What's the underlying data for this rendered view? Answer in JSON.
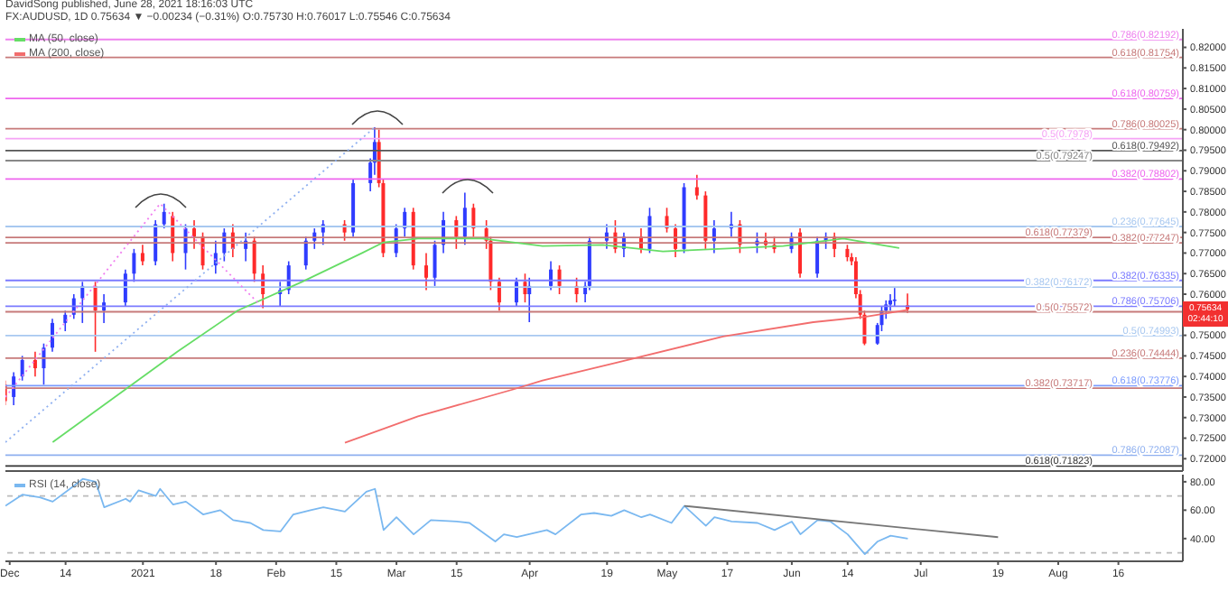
{
  "chart_data": [
    {
      "type": "candlestick",
      "subtitle": "DavidSong published, June 28, 2021 18:16:03 UTC",
      "title": "FX:AUDUSD, 1D 0.75634 ▼ −0.00234 (−0.31%) O:0.75730 H:0.76017 L:0.75546 C:0.75634",
      "x": [
        "2020-11-30",
        "2020-12-02",
        "2020-12-04",
        "2020-12-07",
        "2020-12-09",
        "2020-12-11",
        "2020-12-14",
        "2020-12-16",
        "2020-12-18",
        "2020-12-21",
        "2020-12-23",
        "2020-12-28",
        "2020-12-30",
        "2021-01-01",
        "2021-01-04",
        "2021-01-06",
        "2021-01-08",
        "2021-01-11",
        "2021-01-13",
        "2021-01-15",
        "2021-01-18",
        "2021-01-20",
        "2021-01-22",
        "2021-01-25",
        "2021-01-27",
        "2021-01-29",
        "2021-02-02",
        "2021-02-04",
        "2021-02-08",
        "2021-02-10",
        "2021-02-12",
        "2021-02-17",
        "2021-02-19",
        "2021-02-23",
        "2021-02-24",
        "2021-02-25",
        "2021-02-26",
        "2021-03-01",
        "2021-03-03",
        "2021-03-05",
        "2021-03-08",
        "2021-03-10",
        "2021-03-12",
        "2021-03-15",
        "2021-03-17",
        "2021-03-19",
        "2021-03-22",
        "2021-03-23",
        "2021-03-25",
        "2021-03-29",
        "2021-03-31",
        "2021-04-01",
        "2021-04-06",
        "2021-04-08",
        "2021-04-12",
        "2021-04-14",
        "2021-04-15",
        "2021-04-19",
        "2021-04-21",
        "2021-04-23",
        "2021-04-27",
        "2021-04-29",
        "2021-05-03",
        "2021-05-05",
        "2021-05-07",
        "2021-05-10",
        "2021-05-12",
        "2021-05-14",
        "2021-05-18",
        "2021-05-20",
        "2021-05-24",
        "2021-05-26",
        "2021-05-28",
        "2021-06-01",
        "2021-06-03",
        "2021-06-07",
        "2021-06-09",
        "2021-06-11",
        "2021-06-14",
        "2021-06-15",
        "2021-06-16",
        "2021-06-17",
        "2021-06-18",
        "2021-06-21",
        "2021-06-22",
        "2021-06-23",
        "2021-06-24",
        "2021-06-25",
        "2021-06-28"
      ],
      "ohlc": [
        [
          0.738,
          0.739,
          0.733,
          0.734
        ],
        [
          0.735,
          0.741,
          0.733,
          0.74
        ],
        [
          0.74,
          0.745,
          0.739,
          0.744
        ],
        [
          0.744,
          0.746,
          0.74,
          0.742
        ],
        [
          0.742,
          0.748,
          0.738,
          0.747
        ],
        [
          0.747,
          0.754,
          0.746,
          0.753
        ],
        [
          0.753,
          0.756,
          0.751,
          0.755
        ],
        [
          0.755,
          0.76,
          0.754,
          0.759
        ],
        [
          0.759,
          0.763,
          0.753,
          0.762
        ],
        [
          0.762,
          0.763,
          0.746,
          0.756
        ],
        [
          0.756,
          0.76,
          0.753,
          0.758
        ],
        [
          0.758,
          0.766,
          0.757,
          0.765
        ],
        [
          0.765,
          0.771,
          0.763,
          0.77
        ],
        [
          0.77,
          0.772,
          0.767,
          0.768
        ],
        [
          0.768,
          0.778,
          0.767,
          0.777
        ],
        [
          0.777,
          0.782,
          0.776,
          0.78
        ],
        [
          0.779,
          0.78,
          0.768,
          0.77
        ],
        [
          0.77,
          0.777,
          0.766,
          0.776
        ],
        [
          0.776,
          0.778,
          0.771,
          0.774
        ],
        [
          0.774,
          0.775,
          0.766,
          0.767
        ],
        [
          0.767,
          0.773,
          0.765,
          0.77
        ],
        [
          0.77,
          0.776,
          0.768,
          0.775
        ],
        [
          0.775,
          0.777,
          0.769,
          0.771
        ],
        [
          0.771,
          0.775,
          0.768,
          0.773
        ],
        [
          0.773,
          0.774,
          0.763,
          0.765
        ],
        [
          0.765,
          0.767,
          0.7566,
          0.76
        ],
        [
          0.76,
          0.763,
          0.757,
          0.761
        ],
        [
          0.761,
          0.768,
          0.76,
          0.767
        ],
        [
          0.767,
          0.774,
          0.766,
          0.773
        ],
        [
          0.773,
          0.776,
          0.771,
          0.775
        ],
        [
          0.775,
          0.778,
          0.772,
          0.777
        ],
        [
          0.777,
          0.778,
          0.773,
          0.775
        ],
        [
          0.775,
          0.788,
          0.774,
          0.787
        ],
        [
          0.787,
          0.793,
          0.785,
          0.792
        ],
        [
          0.792,
          0.8006,
          0.789,
          0.797
        ],
        [
          0.797,
          0.8,
          0.786,
          0.787
        ],
        [
          0.787,
          0.788,
          0.769,
          0.77
        ],
        [
          0.77,
          0.777,
          0.769,
          0.776
        ],
        [
          0.776,
          0.781,
          0.774,
          0.78
        ],
        [
          0.78,
          0.781,
          0.766,
          0.767
        ],
        [
          0.767,
          0.77,
          0.761,
          0.764
        ],
        [
          0.764,
          0.773,
          0.762,
          0.772
        ],
        [
          0.772,
          0.78,
          0.77,
          0.778
        ],
        [
          0.778,
          0.779,
          0.771,
          0.774
        ],
        [
          0.774,
          0.7847,
          0.772,
          0.781
        ],
        [
          0.781,
          0.782,
          0.774,
          0.776
        ],
        [
          0.776,
          0.778,
          0.771,
          0.773
        ],
        [
          0.773,
          0.774,
          0.761,
          0.763
        ],
        [
          0.763,
          0.764,
          0.756,
          0.758
        ],
        [
          0.758,
          0.764,
          0.757,
          0.763
        ],
        [
          0.763,
          0.765,
          0.758,
          0.76
        ],
        [
          0.76,
          0.764,
          0.7532,
          0.762
        ],
        [
          0.762,
          0.768,
          0.761,
          0.766
        ],
        [
          0.766,
          0.767,
          0.76,
          0.762
        ],
        [
          0.762,
          0.764,
          0.758,
          0.76
        ],
        [
          0.76,
          0.763,
          0.758,
          0.762
        ],
        [
          0.762,
          0.774,
          0.761,
          0.773
        ],
        [
          0.773,
          0.777,
          0.771,
          0.775
        ],
        [
          0.775,
          0.778,
          0.77,
          0.771
        ],
        [
          0.771,
          0.775,
          0.769,
          0.774
        ],
        [
          0.774,
          0.776,
          0.77,
          0.771
        ],
        [
          0.771,
          0.781,
          0.77,
          0.779
        ],
        [
          0.779,
          0.781,
          0.775,
          0.776
        ],
        [
          0.776,
          0.777,
          0.769,
          0.771
        ],
        [
          0.771,
          0.787,
          0.77,
          0.786
        ],
        [
          0.786,
          0.789,
          0.783,
          0.784
        ],
        [
          0.784,
          0.785,
          0.771,
          0.773
        ],
        [
          0.773,
          0.778,
          0.77,
          0.776
        ],
        [
          0.776,
          0.78,
          0.774,
          0.777
        ],
        [
          0.777,
          0.778,
          0.77,
          0.772
        ],
        [
          0.772,
          0.775,
          0.77,
          0.773
        ],
        [
          0.773,
          0.775,
          0.771,
          0.772
        ],
        [
          0.772,
          0.774,
          0.77,
          0.771
        ],
        [
          0.771,
          0.775,
          0.77,
          0.774
        ],
        [
          0.775,
          0.776,
          0.764,
          0.765
        ],
        [
          0.765,
          0.774,
          0.764,
          0.773
        ],
        [
          0.773,
          0.775,
          0.771,
          0.774
        ],
        [
          0.774,
          0.775,
          0.769,
          0.771
        ],
        [
          0.771,
          0.772,
          0.768,
          0.769
        ],
        [
          0.769,
          0.77,
          0.767,
          0.768
        ],
        [
          0.768,
          0.769,
          0.759,
          0.76
        ],
        [
          0.76,
          0.761,
          0.754,
          0.755
        ],
        [
          0.755,
          0.756,
          0.7476,
          0.748
        ],
        [
          0.748,
          0.753,
          0.7477,
          0.7525
        ],
        [
          0.7525,
          0.757,
          0.751,
          0.756
        ],
        [
          0.756,
          0.7585,
          0.754,
          0.7575
        ],
        [
          0.7575,
          0.76,
          0.756,
          0.7585
        ],
        [
          0.7585,
          0.7615,
          0.757,
          0.7587
        ],
        [
          0.7573,
          0.76017,
          0.75546,
          0.75634
        ]
      ],
      "colors": [
        "#ff2a2a",
        "#2f3cff",
        "#2f3cff",
        "#ff2a2a",
        "#2f3cff",
        "#2f3cff",
        "#2f3cff",
        "#2f3cff",
        "#2f3cff",
        "#ff2a2a",
        "#2f3cff",
        "#2f3cff",
        "#2f3cff",
        "#ff2a2a",
        "#2f3cff",
        "#2f3cff",
        "#ff2a2a",
        "#2f3cff",
        "#ff2a2a",
        "#ff2a2a",
        "#2f3cff",
        "#2f3cff",
        "#ff2a2a",
        "#2f3cff",
        "#ff2a2a",
        "#ff2a2a",
        "#2f3cff",
        "#2f3cff",
        "#2f3cff",
        "#2f3cff",
        "#2f3cff",
        "#ff2a2a",
        "#2f3cff",
        "#2f3cff",
        "#2f3cff",
        "#ff2a2a",
        "#ff2a2a",
        "#2f3cff",
        "#2f3cff",
        "#ff2a2a",
        "#ff2a2a",
        "#2f3cff",
        "#2f3cff",
        "#ff2a2a",
        "#2f3cff",
        "#ff2a2a",
        "#ff2a2a",
        "#ff2a2a",
        "#ff2a2a",
        "#2f3cff",
        "#ff2a2a",
        "#2f3cff",
        "#2f3cff",
        "#ff2a2a",
        "#ff2a2a",
        "#2f3cff",
        "#2f3cff",
        "#2f3cff",
        "#ff2a2a",
        "#2f3cff",
        "#ff2a2a",
        "#2f3cff",
        "#ff2a2a",
        "#ff2a2a",
        "#2f3cff",
        "#ff2a2a",
        "#ff2a2a",
        "#2f3cff",
        "#2f3cff",
        "#ff2a2a",
        "#2f3cff",
        "#ff2a2a",
        "#ff2a2a",
        "#2f3cff",
        "#ff2a2a",
        "#2f3cff",
        "#2f3cff",
        "#ff2a2a",
        "#ff2a2a",
        "#ff2a2a",
        "#ff2a2a",
        "#ff2a2a",
        "#ff2a2a",
        "#2f3cff",
        "#2f3cff",
        "#2f3cff",
        "#2f3cff",
        "#2f3cff",
        "#ff2a2a"
      ],
      "series": [
        {
          "name": "MA (50, close)",
          "type": "line",
          "color": "#66dd66",
          "x": [
            "2020-12-11",
            "2021-01-09",
            "2021-01-23",
            "2021-02-07",
            "2021-02-21",
            "2021-02-26",
            "2021-03-06",
            "2021-03-21",
            "2021-04-04",
            "2021-04-18",
            "2021-05-02",
            "2021-05-30",
            "2021-06-13",
            "2021-06-26"
          ],
          "values": [
            0.724,
            0.746,
            0.756,
            0.763,
            0.77,
            0.7726,
            0.7735,
            0.7735,
            0.7717,
            0.772,
            0.7704,
            0.7717,
            0.7735,
            0.7712
          ]
        },
        {
          "name": "MA (200, close)",
          "type": "line",
          "color": "#f26d6d",
          "x": [
            "2021-02-17",
            "2021-03-06",
            "2021-03-28",
            "2021-04-04",
            "2021-04-21",
            "2021-05-16",
            "2021-06-06",
            "2021-06-18",
            "2021-06-28"
          ],
          "values": [
            0.7239,
            0.7303,
            0.7368,
            0.739,
            0.7433,
            0.7497,
            0.7532,
            0.7545,
            0.7562
          ]
        },
        {
          "type": "line",
          "color": "#8fb0f0",
          "line_style": "dotted",
          "x": [
            "2020-11-30",
            "2021-02-24"
          ],
          "values": [
            0.724,
            0.8006
          ]
        },
        {
          "type": "line",
          "color": "#f07ef0",
          "line_style": "dotted",
          "x": [
            "2020-11-30",
            "2021-01-05",
            "2021-01-29"
          ],
          "values": [
            0.735,
            0.782,
            0.7566
          ]
        }
      ],
      "xlim": [
        "2020-11-30",
        "2021-08-31"
      ],
      "ylim": [
        0.717,
        0.8245
      ],
      "yticks": [
        {
          "value": 0.72,
          "label": "0.72000"
        },
        {
          "value": 0.725,
          "label": "0.72500"
        },
        {
          "value": 0.73,
          "label": "0.73000"
        },
        {
          "value": 0.735,
          "label": "0.73500"
        },
        {
          "value": 0.74,
          "label": "0.74000"
        },
        {
          "value": 0.745,
          "label": "0.74500"
        },
        {
          "value": 0.75,
          "label": "0.75000"
        },
        {
          "value": 0.76,
          "label": "0.76000"
        },
        {
          "value": 0.765,
          "label": "0.76500"
        },
        {
          "value": 0.77,
          "label": "0.77000"
        },
        {
          "value": 0.775,
          "label": "0.77500"
        },
        {
          "value": 0.78,
          "label": "0.78000"
        },
        {
          "value": 0.785,
          "label": "0.78500"
        },
        {
          "value": 0.79,
          "label": "0.79000"
        },
        {
          "value": 0.795,
          "label": "0.79500"
        },
        {
          "value": 0.8,
          "label": "0.80000"
        },
        {
          "value": 0.805,
          "label": "0.80500"
        },
        {
          "value": 0.81,
          "label": "0.81000"
        },
        {
          "value": 0.815,
          "label": "0.81500"
        },
        {
          "value": 0.82,
          "label": "0.82000"
        }
      ],
      "ref_lines": [
        {
          "axis": "y",
          "value": 0.82192,
          "label": "0.786(0.82192)",
          "color": "#ee82ee"
        },
        {
          "axis": "y",
          "value": 0.81754,
          "label": "0.618(0.81754)",
          "color": "#c77a7a"
        },
        {
          "axis": "y",
          "value": 0.80759,
          "label": "0.618(0.80759)",
          "color": "#ee66ee"
        },
        {
          "axis": "y",
          "value": 0.80025,
          "label": "0.786(0.80025)",
          "color": "#c77a7a"
        },
        {
          "axis": "y",
          "value": 0.7978,
          "label": "0.5(0.7978)",
          "color": "#f5a3f5"
        },
        {
          "axis": "y",
          "value": 0.79492,
          "label": "0.618(0.79492)",
          "color": "#555555"
        },
        {
          "axis": "y",
          "value": 0.79247,
          "label": "0.5(0.79247)",
          "color": "#888888"
        },
        {
          "axis": "y",
          "value": 0.78802,
          "label": "0.382(0.78802)",
          "color": "#ee66ee"
        },
        {
          "axis": "y",
          "value": 0.77645,
          "label": "0.236(0.77645)",
          "color": "#a8c8f0"
        },
        {
          "axis": "y",
          "value": 0.77379,
          "label": "0.618(0.77379)",
          "color": "#c77a7a"
        },
        {
          "axis": "y",
          "value": 0.77247,
          "label": "0.382(0.77247)",
          "color": "#c77a7a"
        },
        {
          "axis": "y",
          "value": 0.76335,
          "label": "0.382(0.76335)",
          "color": "#7b7bff"
        },
        {
          "axis": "y",
          "value": 0.76172,
          "label": "0.382(0.76172)",
          "color": "#a8c8f0"
        },
        {
          "axis": "y",
          "value": 0.75706,
          "label": "0.786(0.75706)",
          "color": "#7b7bff"
        },
        {
          "axis": "y",
          "value": 0.75572,
          "label": "0.5(0.75572)",
          "color": "#c77a7a"
        },
        {
          "axis": "y",
          "value": 0.74993,
          "label": "0.5(0.74993)",
          "color": "#a8c8f0"
        },
        {
          "axis": "y",
          "value": 0.74444,
          "label": "0.236(0.74444)",
          "color": "#c77a7a"
        },
        {
          "axis": "y",
          "value": 0.73776,
          "label": "0.618(0.73776)",
          "color": "#7b9bff"
        },
        {
          "axis": "y",
          "value": 0.73717,
          "label": "0.382(0.73717)",
          "color": "#c77a7a"
        },
        {
          "axis": "y",
          "value": 0.72087,
          "label": "0.786(0.72087)",
          "color": "#8fb0f0"
        },
        {
          "axis": "y",
          "value": 0.71823,
          "label": "0.618(0.71823)",
          "color": "#333333"
        }
      ],
      "annotations": [
        "0.75634",
        "02:44:10"
      ],
      "legend": "top left",
      "tick_labels": "y",
      "marker": "none",
      "grid": false
    },
    {
      "type": "line",
      "series": [
        {
          "name": "RSI (14, close)",
          "color": "#7ab8f0",
          "x": [
            "2020-11-30",
            "2020-12-04",
            "2020-12-08",
            "2020-12-11",
            "2020-12-15",
            "2020-12-18",
            "2020-12-21",
            "2020-12-23",
            "2020-12-28",
            "2020-12-29",
            "2020-12-31",
            "2021-01-04",
            "2021-01-05",
            "2021-01-08",
            "2021-01-11",
            "2021-01-15",
            "2021-01-19",
            "2021-01-22",
            "2021-01-26",
            "2021-01-29",
            "2021-02-02",
            "2021-02-05",
            "2021-02-09",
            "2021-02-12",
            "2021-02-17",
            "2021-02-22",
            "2021-02-24",
            "2021-02-26",
            "2021-03-01",
            "2021-03-05",
            "2021-03-09",
            "2021-03-15",
            "2021-03-18",
            "2021-03-24",
            "2021-03-26",
            "2021-03-29",
            "2021-04-05",
            "2021-04-07",
            "2021-04-13",
            "2021-04-16",
            "2021-04-20",
            "2021-04-23",
            "2021-04-27",
            "2021-04-29",
            "2021-05-04",
            "2021-05-07",
            "2021-05-12",
            "2021-05-14",
            "2021-05-18",
            "2021-05-24",
            "2021-05-28",
            "2021-06-01",
            "2021-06-03",
            "2021-06-07",
            "2021-06-10",
            "2021-06-14",
            "2021-06-18",
            "2021-06-21",
            "2021-06-24",
            "2021-06-28"
          ],
          "values": [
            63,
            71,
            69,
            66,
            75,
            82,
            80,
            62,
            68,
            66,
            74,
            70,
            75,
            64,
            66,
            57,
            60,
            53,
            51,
            46,
            45,
            57,
            60,
            62,
            59,
            73,
            75,
            46,
            55,
            43,
            53,
            52,
            51,
            38,
            43,
            41,
            46,
            43,
            57,
            58,
            56,
            60,
            55,
            57,
            51,
            63,
            49,
            55,
            52,
            51,
            46,
            52,
            43,
            53,
            52,
            43,
            29,
            38,
            42,
            40
          ]
        },
        {
          "type": "line",
          "color": "#777777",
          "x": [
            "2021-05-07",
            "2021-07-19"
          ],
          "values": [
            63,
            41
          ]
        }
      ],
      "xlim": [
        "2020-11-30",
        "2021-08-31"
      ],
      "ylim": [
        24,
        85
      ],
      "yticks": [
        {
          "value": 40,
          "label": "40.00"
        },
        {
          "value": 60,
          "label": "60.00"
        },
        {
          "value": 80,
          "label": "80.00"
        }
      ],
      "xticks": [
        {
          "value": "2020-12-01",
          "label": "Dec"
        },
        {
          "value": "2020-12-14",
          "label": "14"
        },
        {
          "value": "2021-01-01",
          "label": "2021"
        },
        {
          "value": "2021-01-18",
          "label": "18"
        },
        {
          "value": "2021-02-01",
          "label": "Feb"
        },
        {
          "value": "2021-02-15",
          "label": "15"
        },
        {
          "value": "2021-03-01",
          "label": "Mar"
        },
        {
          "value": "2021-03-15",
          "label": "15"
        },
        {
          "value": "2021-04-01",
          "label": "Apr"
        },
        {
          "value": "2021-04-19",
          "label": "19"
        },
        {
          "value": "2021-05-03",
          "label": "May"
        },
        {
          "value": "2021-05-17",
          "label": "17"
        },
        {
          "value": "2021-06-01",
          "label": "Jun"
        },
        {
          "value": "2021-06-14",
          "label": "14"
        },
        {
          "value": "2021-07-01",
          "label": "Jul"
        },
        {
          "value": "2021-07-19",
          "label": "19"
        },
        {
          "value": "2021-08-02",
          "label": "Aug"
        },
        {
          "value": "2021-08-16",
          "label": "16"
        }
      ],
      "ref_lines": [
        {
          "axis": "y",
          "value": 70,
          "color": "#bbbbbb",
          "line_style": "dashed"
        },
        {
          "axis": "y",
          "value": 30,
          "color": "#bbbbbb",
          "line_style": "dashed"
        }
      ],
      "legend": "top left",
      "marker": "none",
      "grid": false
    }
  ]
}
